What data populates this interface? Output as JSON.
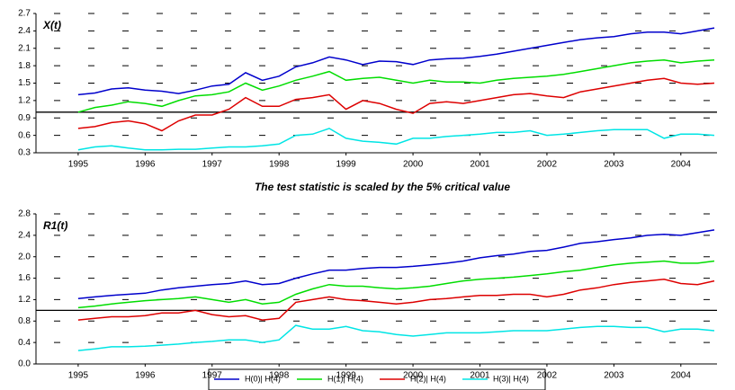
{
  "chart_data": [
    {
      "type": "line",
      "title": "X(t)",
      "xlabel": "The test statistic is scaled by the 5% critical value",
      "x": [
        1995,
        1995.25,
        1995.5,
        1995.75,
        1996,
        1996.25,
        1996.5,
        1996.75,
        1997,
        1997.25,
        1997.5,
        1997.75,
        1998,
        1998.25,
        1998.5,
        1998.75,
        1999,
        1999.25,
        1999.5,
        1999.75,
        2000,
        2000.25,
        2000.5,
        2000.75,
        2001,
        2001.25,
        2001.5,
        2001.75,
        2002,
        2002.25,
        2002.5,
        2002.75,
        2003,
        2003.25,
        2003.5,
        2003.75,
        2004,
        2004.25,
        2004.5
      ],
      "xlim": [
        1994.37,
        2004.54
      ],
      "xticks": [
        1995,
        1996,
        1997,
        1998,
        1999,
        2000,
        2001,
        2002,
        2003,
        2004
      ],
      "ylim": [
        0.3,
        2.7
      ],
      "yticks": [
        0.3,
        0.6,
        0.9,
        1.2,
        1.5,
        1.8,
        2.1,
        2.4,
        2.7
      ],
      "grid": true,
      "refline": 1,
      "series": [
        {
          "color": "#0000cc",
          "values": [
            1.3,
            1.33,
            1.4,
            1.42,
            1.38,
            1.36,
            1.32,
            1.38,
            1.45,
            1.48,
            1.68,
            1.55,
            1.62,
            1.78,
            1.85,
            1.95,
            1.9,
            1.82,
            1.88,
            1.87,
            1.82,
            1.9,
            1.92,
            1.93,
            1.96,
            2.0,
            2.05,
            2.1,
            2.15,
            2.2,
            2.25,
            2.28,
            2.3,
            2.35,
            2.38,
            2.38,
            2.35,
            2.4,
            2.45
          ]
        },
        {
          "color": "#00dd00",
          "values": [
            1.0,
            1.08,
            1.12,
            1.18,
            1.15,
            1.1,
            1.2,
            1.28,
            1.3,
            1.35,
            1.5,
            1.38,
            1.45,
            1.55,
            1.62,
            1.7,
            1.55,
            1.58,
            1.6,
            1.55,
            1.5,
            1.55,
            1.52,
            1.52,
            1.5,
            1.55,
            1.58,
            1.6,
            1.62,
            1.65,
            1.7,
            1.75,
            1.8,
            1.85,
            1.88,
            1.9,
            1.85,
            1.88,
            1.9
          ]
        },
        {
          "color": "#dd0000",
          "values": [
            0.72,
            0.75,
            0.82,
            0.85,
            0.8,
            0.68,
            0.85,
            0.95,
            0.95,
            1.05,
            1.25,
            1.1,
            1.1,
            1.22,
            1.25,
            1.3,
            1.05,
            1.2,
            1.15,
            1.05,
            0.98,
            1.15,
            1.18,
            1.15,
            1.2,
            1.25,
            1.3,
            1.32,
            1.28,
            1.25,
            1.35,
            1.4,
            1.45,
            1.5,
            1.55,
            1.58,
            1.5,
            1.48,
            1.5
          ]
        },
        {
          "color": "#00e5e5",
          "values": [
            0.35,
            0.4,
            0.42,
            0.38,
            0.35,
            0.35,
            0.36,
            0.36,
            0.38,
            0.4,
            0.4,
            0.42,
            0.45,
            0.6,
            0.62,
            0.72,
            0.55,
            0.5,
            0.48,
            0.45,
            0.55,
            0.55,
            0.58,
            0.6,
            0.62,
            0.65,
            0.65,
            0.68,
            0.6,
            0.62,
            0.65,
            0.68,
            0.7,
            0.7,
            0.7,
            0.55,
            0.62,
            0.62,
            0.6
          ]
        }
      ]
    },
    {
      "type": "line",
      "title": "R1(t)",
      "x": [
        1995,
        1995.25,
        1995.5,
        1995.75,
        1996,
        1996.25,
        1996.5,
        1996.75,
        1997,
        1997.25,
        1997.5,
        1997.75,
        1998,
        1998.25,
        1998.5,
        1998.75,
        1999,
        1999.25,
        1999.5,
        1999.75,
        2000,
        2000.25,
        2000.5,
        2000.75,
        2001,
        2001.25,
        2001.5,
        2001.75,
        2002,
        2002.25,
        2002.5,
        2002.75,
        2003,
        2003.25,
        2003.5,
        2003.75,
        2004,
        2004.25,
        2004.5
      ],
      "xlim": [
        1994.37,
        2004.54
      ],
      "xticks": [
        1995,
        1996,
        1997,
        1998,
        1999,
        2000,
        2001,
        2002,
        2003,
        2004
      ],
      "ylim": [
        0,
        2.8
      ],
      "yticks": [
        {
          "value": 0,
          "label": "0.0"
        },
        0.4,
        0.8,
        1.2,
        1.6,
        {
          "value": 2,
          "label": "2.0"
        },
        2.4,
        2.8
      ],
      "grid": true,
      "refline": 1,
      "series": [
        {
          "name": "H(0)| H(4)",
          "color": "#0000cc",
          "values": [
            1.22,
            1.25,
            1.28,
            1.3,
            1.32,
            1.38,
            1.42,
            1.45,
            1.48,
            1.5,
            1.55,
            1.48,
            1.5,
            1.6,
            1.68,
            1.75,
            1.75,
            1.78,
            1.8,
            1.8,
            1.82,
            1.85,
            1.88,
            1.92,
            1.98,
            2.02,
            2.05,
            2.1,
            2.12,
            2.18,
            2.25,
            2.28,
            2.32,
            2.35,
            2.4,
            2.42,
            2.4,
            2.45,
            2.5
          ]
        },
        {
          "name": "H(1)| H(4)",
          "color": "#00dd00",
          "values": [
            1.05,
            1.08,
            1.12,
            1.15,
            1.18,
            1.2,
            1.22,
            1.25,
            1.2,
            1.15,
            1.2,
            1.12,
            1.15,
            1.3,
            1.4,
            1.48,
            1.45,
            1.45,
            1.42,
            1.4,
            1.42,
            1.45,
            1.5,
            1.55,
            1.58,
            1.6,
            1.62,
            1.65,
            1.68,
            1.72,
            1.75,
            1.8,
            1.85,
            1.88,
            1.9,
            1.92,
            1.88,
            1.88,
            1.92
          ]
        },
        {
          "name": "H(2)| H(4)",
          "color": "#dd0000",
          "values": [
            0.82,
            0.85,
            0.88,
            0.88,
            0.9,
            0.95,
            0.95,
            1.0,
            0.92,
            0.88,
            0.9,
            0.82,
            0.85,
            1.15,
            1.2,
            1.25,
            1.2,
            1.18,
            1.15,
            1.12,
            1.15,
            1.2,
            1.22,
            1.25,
            1.28,
            1.28,
            1.3,
            1.3,
            1.25,
            1.3,
            1.38,
            1.42,
            1.48,
            1.52,
            1.55,
            1.58,
            1.5,
            1.48,
            1.55
          ]
        },
        {
          "name": "H(3)| H(4)",
          "color": "#00e5e5",
          "values": [
            0.25,
            0.28,
            0.32,
            0.32,
            0.33,
            0.35,
            0.37,
            0.4,
            0.42,
            0.45,
            0.45,
            0.4,
            0.45,
            0.72,
            0.65,
            0.65,
            0.7,
            0.62,
            0.6,
            0.55,
            0.52,
            0.55,
            0.58,
            0.58,
            0.58,
            0.6,
            0.62,
            0.62,
            0.62,
            0.65,
            0.68,
            0.7,
            0.7,
            0.68,
            0.68,
            0.6,
            0.65,
            0.65,
            0.62
          ]
        }
      ]
    }
  ]
}
